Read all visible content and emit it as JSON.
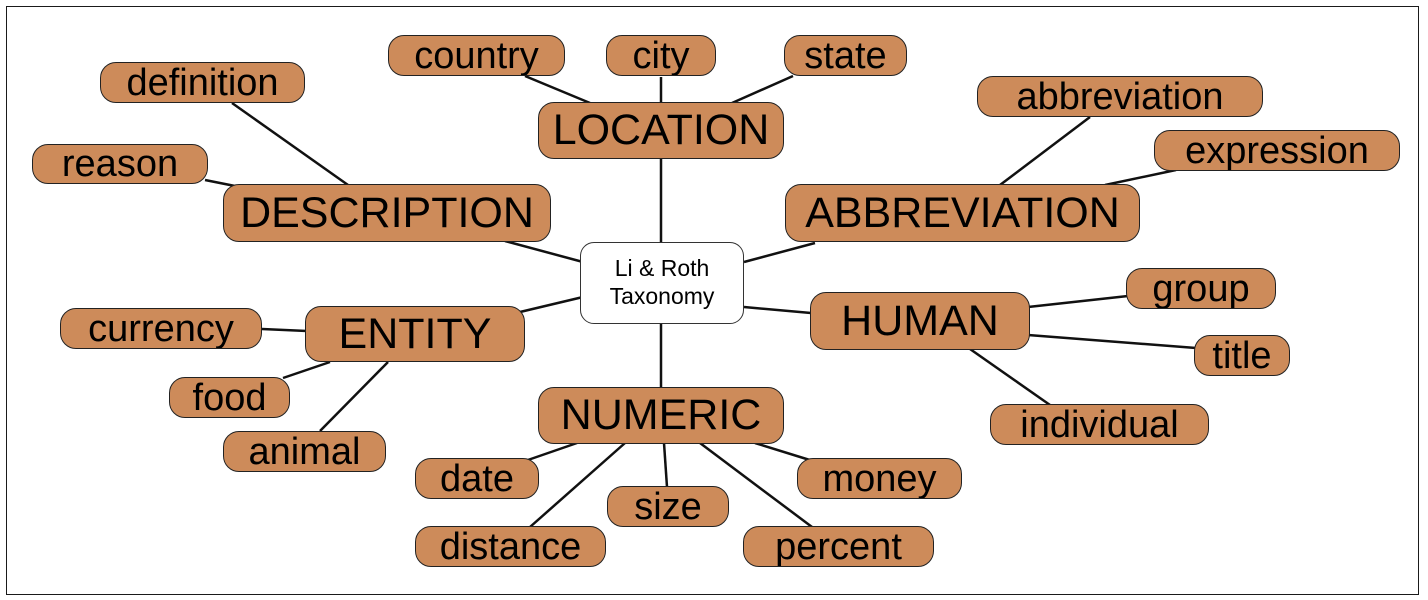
{
  "root": {
    "line1": "Li & Roth",
    "line2": "Taxonomy"
  },
  "colors": {
    "node_fill": "#CD8B5A",
    "root_fill": "#FFFFFF",
    "stroke": "#111111"
  },
  "categories": {
    "location": {
      "label": "LOCATION",
      "children": {
        "country": "country",
        "city": "city",
        "state": "state"
      }
    },
    "description": {
      "label": "DESCRIPTION",
      "children": {
        "definition": "definition",
        "reason": "reason"
      }
    },
    "abbreviation": {
      "label": "ABBREVIATION",
      "children": {
        "abbreviation": "abbreviation",
        "expression": "expression"
      }
    },
    "entity": {
      "label": "ENTITY",
      "children": {
        "currency": "currency",
        "food": "food",
        "animal": "animal"
      }
    },
    "human": {
      "label": "HUMAN",
      "children": {
        "group": "group",
        "title": "title",
        "individual": "individual"
      }
    },
    "numeric": {
      "label": "NUMERIC",
      "children": {
        "date": "date",
        "distance": "distance",
        "size": "size",
        "money": "money",
        "percent": "percent"
      }
    }
  }
}
